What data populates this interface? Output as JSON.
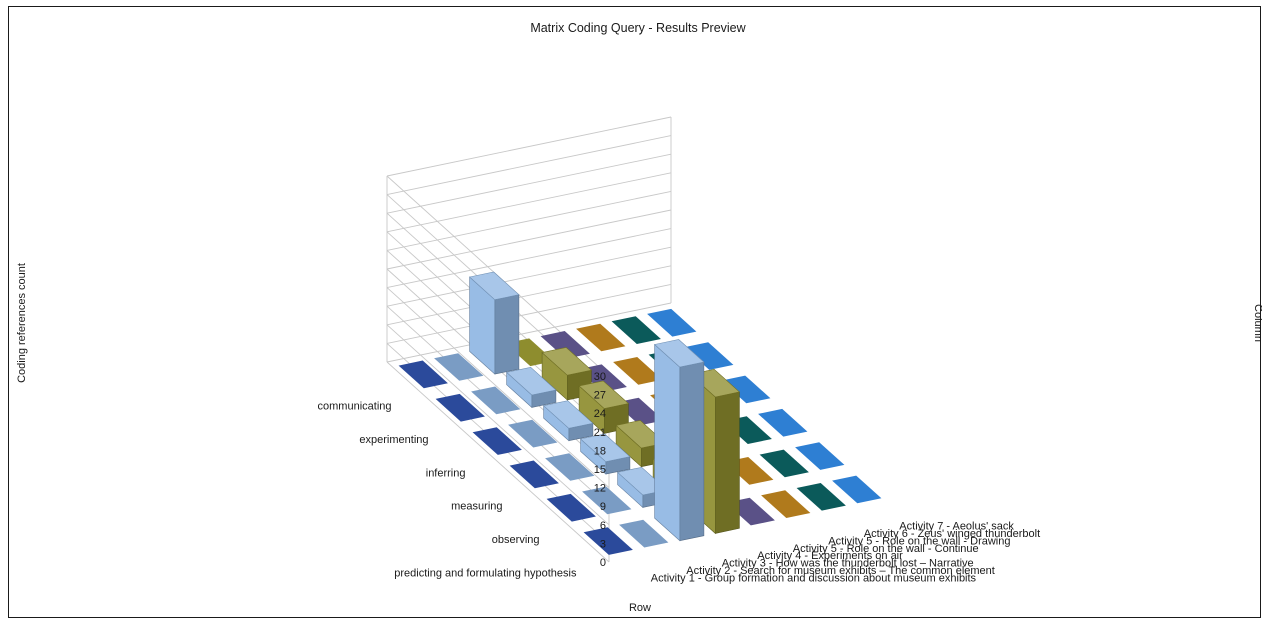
{
  "chart_data": {
    "type": "bar",
    "title": "Matrix Coding Query - Results Preview",
    "zlabel": "Coding references count",
    "xlabel": "Row",
    "ylabel": "Column",
    "zlim": [
      0,
      30
    ],
    "z_ticks": [
      "0",
      "3",
      "6",
      "9",
      "12",
      "15",
      "18",
      "21",
      "24",
      "27",
      "30"
    ],
    "grid": true,
    "rows": [
      "communicating",
      "experimenting",
      "inferring",
      "measuring",
      "observing",
      "predicting and formulating hypothesis"
    ],
    "columns": [
      "Activity 1 - Group formation and discussion about museum exhibits",
      "Activity 2 - Search for museum exhibits – The common element",
      "Activity 3 - How was the thunderbolt lost – Narrative",
      "Activity 4 - Experiments on air",
      "Activity 5 - Role on the wall - Continue",
      "Activity 5 - Role on the wall - Drawing",
      "Activity 6 - Zeus' winged thunderbolt",
      "Activity 7 - Aeolus' sack"
    ],
    "series": [
      {
        "values": [
          0,
          0,
          0,
          0,
          0,
          0
        ]
      },
      {
        "values": [
          0,
          0,
          0,
          0,
          0,
          0
        ]
      },
      {
        "values": [
          12,
          2,
          2,
          2,
          2,
          28
        ]
      },
      {
        "values": [
          0,
          4,
          4,
          3,
          3,
          22
        ]
      },
      {
        "values": [
          0,
          0,
          0,
          0,
          0,
          0
        ]
      },
      {
        "values": [
          0,
          0,
          0,
          0,
          0,
          0
        ]
      },
      {
        "values": [
          0,
          0,
          0,
          0,
          0,
          0
        ]
      },
      {
        "values": [
          0,
          0,
          0,
          0,
          0,
          0
        ]
      }
    ],
    "colors": [
      "#2b4a9b",
      "#7a9cc4",
      "#8fb6e3",
      "#8e8d2e",
      "#5a5187",
      "#b07a1c",
      "#0b5a5a",
      "#2e7fd3",
      "#7a2a0f"
    ]
  }
}
